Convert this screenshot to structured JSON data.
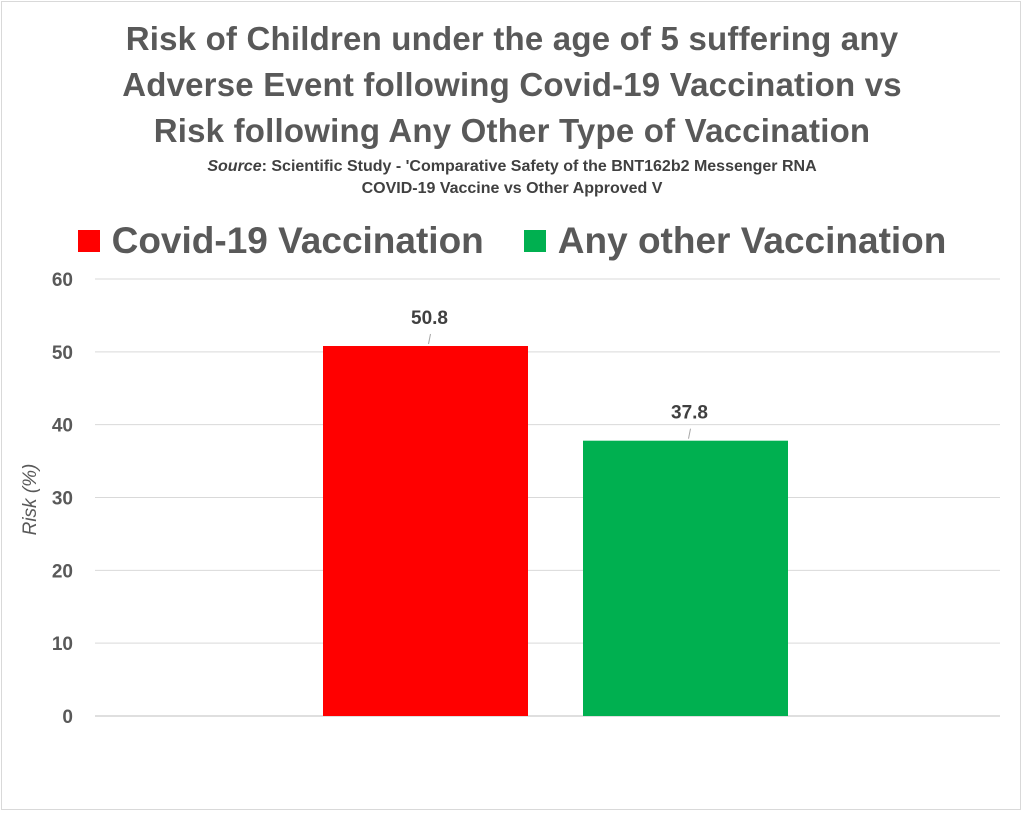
{
  "title_lines": [
    "Risk of Children under the age of 5 suffering any",
    "Adverse Event following Covid-19 Vaccination vs",
    "Risk following Any Other Type of Vaccination"
  ],
  "subtitle": {
    "source_label": "Source",
    "line1_rest": ": Scientific Study - 'Comparative Safety of the BNT162b2 Messenger RNA",
    "line2": "COVID-19 Vaccine vs Other Approved V"
  },
  "legend": [
    {
      "label": "Covid-19 Vaccination",
      "color": "#ff0000"
    },
    {
      "label": "Any other Vaccination",
      "color": "#00b050"
    }
  ],
  "chart_data": {
    "type": "bar",
    "categories": [
      ""
    ],
    "series": [
      {
        "name": "Covid-19 Vaccination",
        "values": [
          50.8
        ],
        "color": "#ff0000"
      },
      {
        "name": "Any other Vaccination",
        "values": [
          37.8
        ],
        "color": "#00b050"
      }
    ],
    "data_labels": [
      "50.8",
      "37.8"
    ],
    "title": "Risk of Children under the age of 5 suffering any Adverse Event following Covid-19 Vaccination vs Risk following Any Other Type of Vaccination",
    "xlabel": "",
    "ylabel": "Risk (%)",
    "ylim": [
      0,
      60
    ],
    "yticks": [
      0,
      10,
      20,
      30,
      40,
      50,
      60
    ],
    "grid": true,
    "legend_position": "top"
  }
}
